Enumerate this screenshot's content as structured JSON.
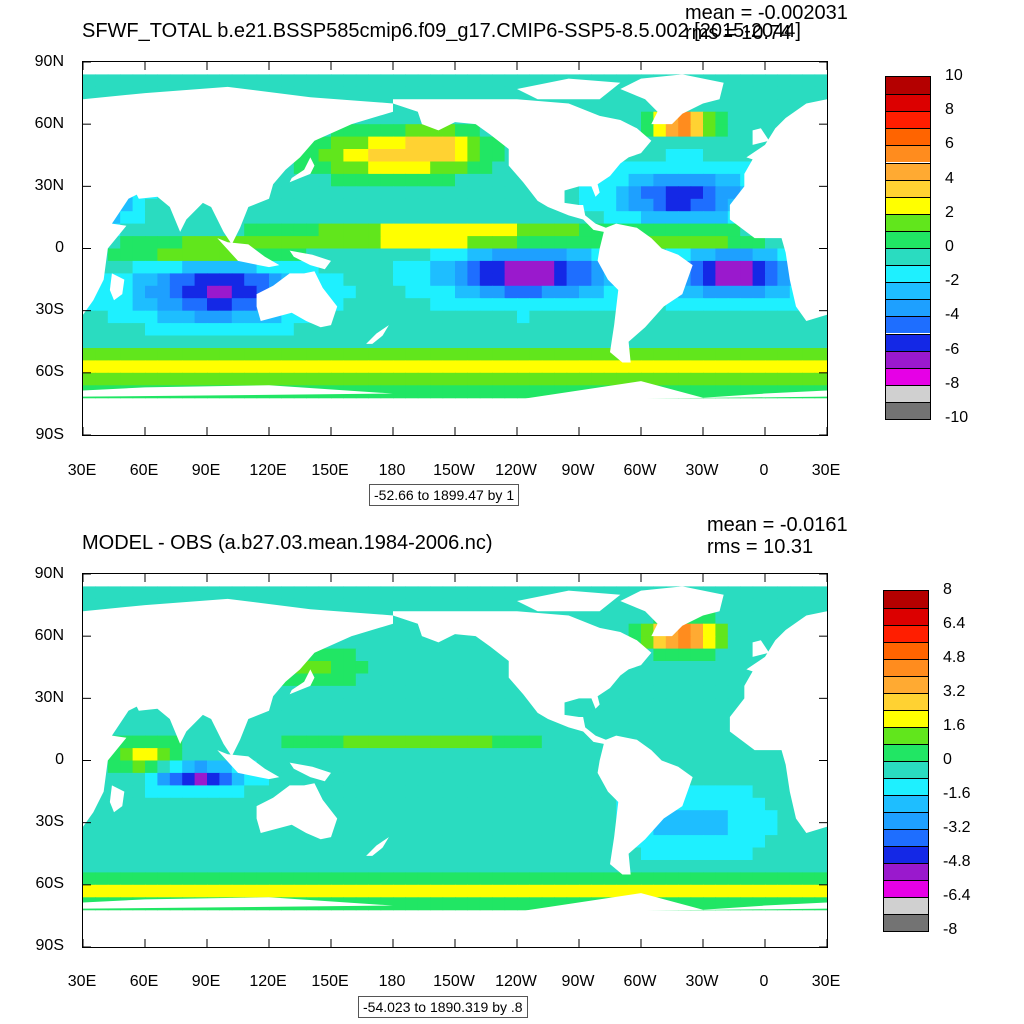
{
  "colors": [
    "#737373",
    "#d0d0d0",
    "#e600e6",
    "#9a19cd",
    "#1428e6",
    "#1e6eff",
    "#1ea0ff",
    "#1ebeff",
    "#1ef0ff",
    "#2adcc0",
    "#21e664",
    "#61e61c",
    "#ffff00",
    "#ffd232",
    "#ffaa32",
    "#ff8c1e",
    "#ff6400",
    "#ff1e00",
    "#dc0000",
    "#b40000"
  ],
  "land_color": "#ffffff",
  "chart_data": [
    {
      "type": "heatmap",
      "title": "SFWF_TOTAL b.e21.BSSP585cmip6.f09_g17.CMIP6-SSP5-8.5.002 [2015-2044]",
      "mean_label": "mean = -0.002031",
      "rms_label": "rms = 10.74",
      "range_label": "-52.66 to 1899.47 by 1",
      "lat_ticks": [
        "90N",
        "60N",
        "30N",
        "0",
        "30S",
        "60S",
        "90S"
      ],
      "lon_ticks": [
        "30E",
        "60E",
        "90E",
        "120E",
        "150E",
        "180",
        "150W",
        "120W",
        "90W",
        "60W",
        "30W",
        "0",
        "30E"
      ],
      "colorbar_labels": [
        "10",
        "8",
        "6",
        "4",
        "2",
        "0",
        "-2",
        "-4",
        "-6",
        "-8",
        "-10"
      ],
      "colorbar_range": [
        -10,
        10
      ],
      "features": [
        {
          "name": "Indian Ocean subtropical minimum",
          "lon": 95,
          "lat": -22,
          "value": -5
        },
        {
          "name": "South Pacific minimum",
          "lon": -115,
          "lat": -12,
          "value": -6
        },
        {
          "name": "South Atlantic minimum",
          "lon": -15,
          "lat": -12,
          "value": -6
        },
        {
          "name": "North Atlantic minimum",
          "lon": -40,
          "lat": 25,
          "value": -5
        },
        {
          "name": "North Pacific band",
          "lon": -170,
          "lat": 45,
          "value": 3
        },
        {
          "name": "ITCZ",
          "lon": -150,
          "lat": 5,
          "value": 4
        },
        {
          "name": "Southern Ocean band",
          "lon": 0,
          "lat": -60,
          "value": 4
        },
        {
          "name": "Greenland coast",
          "lon": -40,
          "lat": 65,
          "value": 10
        }
      ]
    },
    {
      "type": "heatmap",
      "title": "MODEL - OBS (a.b27.03.mean.1984-2006.nc)",
      "mean_label": "mean = -0.0161",
      "rms_label": "rms = 10.31",
      "range_label": "-54.023 to 1890.319 by .8",
      "lat_ticks": [
        "90N",
        "60N",
        "30N",
        "0",
        "30S",
        "60S",
        "90S"
      ],
      "lon_ticks": [
        "30E",
        "60E",
        "90E",
        "120E",
        "150E",
        "180",
        "150W",
        "120W",
        "90W",
        "60W",
        "30W",
        "0",
        "30E"
      ],
      "colorbar_labels": [
        "8",
        "6.4",
        "4.8",
        "3.2",
        "1.6",
        "0",
        "-1.6",
        "-3.2",
        "-4.8",
        "-6.4",
        "-8"
      ],
      "colorbar_range": [
        -8,
        8
      ],
      "features": [
        {
          "name": "Eastern Indian Ocean minimum",
          "lon": 85,
          "lat": -8,
          "value": -5
        },
        {
          "name": "Western Indian Ocean",
          "lon": 60,
          "lat": 0,
          "value": 3
        },
        {
          "name": "North Pacific ITCZ",
          "lon": -170,
          "lat": 8,
          "value": 2
        },
        {
          "name": "Southern Ocean band",
          "lon": -30,
          "lat": -60,
          "value": 4
        },
        {
          "name": "Greenland coast",
          "lon": -40,
          "lat": 65,
          "value": 8
        }
      ]
    }
  ]
}
